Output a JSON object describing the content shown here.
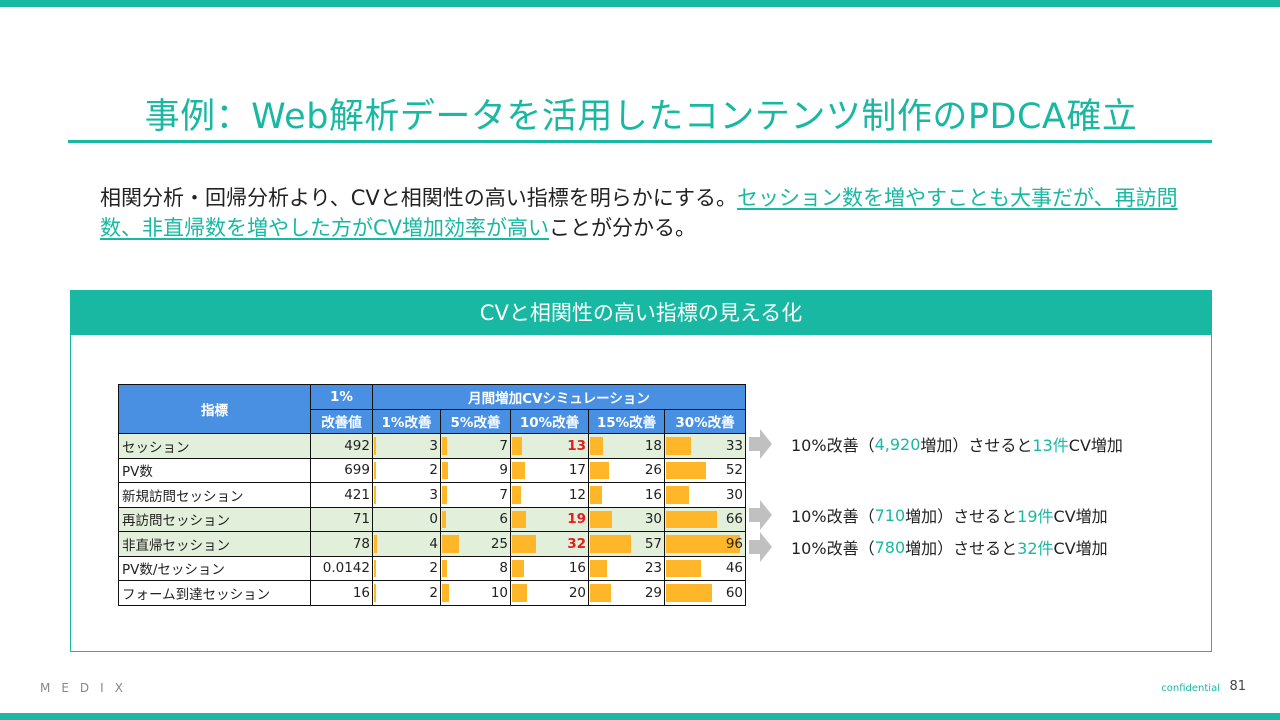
{
  "slide": {
    "title": "事例：Web解析データを活用したコンテンツ制作のPDCA確立",
    "lead_plain_1": "相関分析・回帰分析より、CVと相関性の高い指標を明らかにする。",
    "lead_highlight": "セッション数を増やすことも大事だが、再訪問数、非直帰数を増やした方がCV増加効率が高い",
    "lead_plain_2": "ことが分かる。",
    "panel_title": "CVと相関性の高い指標の見える化",
    "footer": {
      "logo": "MEDIX",
      "confidential": "confidential",
      "page": "81"
    }
  },
  "colors": {
    "teal": "#19b8a3",
    "header_blue": "#4a90e2",
    "bar_orange": "#ffb628",
    "highlight_red": "#e02020",
    "row_green": "#e2efda"
  },
  "table": {
    "header": {
      "metric": "指標",
      "improve_1": "1%",
      "improve_2": "改善値",
      "simulation": "月間増加CVシミュレーション",
      "cols": [
        "1%改善",
        "5%改善",
        "10%改善",
        "15%改善",
        "30%改善"
      ]
    },
    "rows": [
      {
        "name": "セッション",
        "base": "492",
        "values": [
          "3",
          "7",
          "13",
          "18",
          "33"
        ],
        "bars": [
          0.03,
          0.07,
          0.13,
          0.18,
          0.33
        ],
        "green": true,
        "red_col": 2
      },
      {
        "name": "PV数",
        "base": "699",
        "values": [
          "2",
          "9",
          "17",
          "26",
          "52"
        ],
        "bars": [
          0.02,
          0.09,
          0.17,
          0.26,
          0.52
        ],
        "green": false,
        "red_col": -1
      },
      {
        "name": "新規訪問セッション",
        "base": "421",
        "values": [
          "3",
          "7",
          "12",
          "16",
          "30"
        ],
        "bars": [
          0.03,
          0.07,
          0.12,
          0.16,
          0.3
        ],
        "green": false,
        "red_col": -1
      },
      {
        "name": "再訪問セッション",
        "base": "71",
        "values": [
          "0",
          "6",
          "19",
          "30",
          "66"
        ],
        "bars": [
          0.0,
          0.06,
          0.19,
          0.3,
          0.66
        ],
        "green": true,
        "red_col": 2
      },
      {
        "name": "非直帰セッション",
        "base": "78",
        "values": [
          "4",
          "25",
          "32",
          "57",
          "96"
        ],
        "bars": [
          0.04,
          0.25,
          0.32,
          0.57,
          0.96
        ],
        "green": true,
        "red_col": 2
      },
      {
        "name": "PV数/セッション",
        "base": "0.0142",
        "values": [
          "2",
          "8",
          "16",
          "23",
          "46"
        ],
        "bars": [
          0.02,
          0.08,
          0.16,
          0.23,
          0.46
        ],
        "green": false,
        "red_col": -1
      },
      {
        "name": "フォーム到達セッション",
        "base": "16",
        "values": [
          "2",
          "10",
          "20",
          "29",
          "60"
        ],
        "bars": [
          0.02,
          0.1,
          0.2,
          0.29,
          0.6
        ],
        "green": false,
        "red_col": -1
      }
    ]
  },
  "callouts": [
    {
      "pre": "10%改善（",
      "num": "4,920",
      "mid": "増加）させると",
      "cv": "13件",
      "post": "CV増加"
    },
    {
      "pre": "10%改善（",
      "num": "710",
      "mid": "増加）させると",
      "cv": "19件",
      "post": "CV増加"
    },
    {
      "pre": "10%改善（",
      "num": "780",
      "mid": "増加）させると",
      "cv": "32件",
      "post": "CV増加"
    }
  ]
}
